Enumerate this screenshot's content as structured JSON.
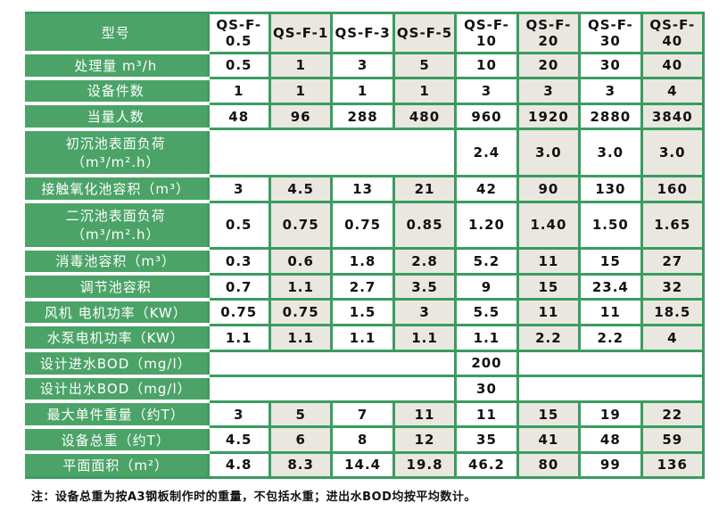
{
  "colors": {
    "label_green": "#4ba368",
    "border_green": "#3a9c60",
    "alt_beige": "#e9e7e0",
    "cell_white": "#ffffff",
    "text_black": "#111111",
    "label_text_white": "#ffffff"
  },
  "table": {
    "header": {
      "label": "型号",
      "models": [
        "QS-F-0.5",
        "QS-F-1",
        "QS-F-3",
        "QS-F-5",
        "QS-F-10",
        "QS-F-20",
        "QS-F-30",
        "QS-F-40"
      ]
    },
    "rows": [
      {
        "label": "处理量 m³/h",
        "cells": [
          "0.5",
          "1",
          "3",
          "5",
          "10",
          "20",
          "30",
          "40"
        ]
      },
      {
        "label": "设备件数",
        "cells": [
          "1",
          "1",
          "1",
          "1",
          "3",
          "3",
          "3",
          "4"
        ]
      },
      {
        "label": "当量人数",
        "cells": [
          "48",
          "96",
          "288",
          "480",
          "960",
          "1920",
          "2880",
          "3840"
        ]
      },
      {
        "label": "初沉池表面负荷（m³/m².h）",
        "cells": [
          {
            "text": "",
            "span": 4,
            "white": true
          },
          "2.4",
          "3.0",
          "3.0",
          "3.0"
        ]
      },
      {
        "label": "接触氧化池容积（m³）",
        "cells": [
          "3",
          "4.5",
          "13",
          "21",
          "42",
          "90",
          "130",
          "160"
        ]
      },
      {
        "label": "二沉池表面负荷（m³/m².h）",
        "cells": [
          "0.5",
          "0.75",
          "0.75",
          "0.85",
          "1.20",
          "1.40",
          "1.50",
          "1.65"
        ]
      },
      {
        "label": "消毒池容积（m³）",
        "cells": [
          "0.3",
          "0.6",
          "1.8",
          "2.8",
          "5.2",
          "11",
          "15",
          "27"
        ]
      },
      {
        "label": "调节池容积",
        "cells": [
          "0.7",
          "1.1",
          "2.7",
          "3.5",
          "9",
          "15",
          "23.4",
          "32"
        ]
      },
      {
        "label": "风机 电机功率（KW）",
        "cells": [
          "0.75",
          "0.75",
          "1.5",
          "3",
          "5.5",
          "11",
          "11",
          "18.5"
        ]
      },
      {
        "label": "水泵电机功率（KW）",
        "cells": [
          "1.1",
          "1.1",
          "1.1",
          "1.1",
          "1.1",
          "2.2",
          "2.2",
          "4"
        ]
      },
      {
        "label": "设计进水BOD（mg/l）",
        "cells": [
          {
            "text": "",
            "span": 4,
            "white": true
          },
          "200",
          {
            "text": "",
            "span": 3,
            "white": true
          }
        ]
      },
      {
        "label": "设计出水BOD（mg/l）",
        "cells": [
          {
            "text": "",
            "span": 4,
            "white": true
          },
          "30",
          {
            "text": "",
            "span": 3,
            "white": true
          }
        ]
      },
      {
        "label": "最大单件重量（约T）",
        "cells": [
          "3",
          "5",
          "7",
          "11",
          "11",
          "15",
          "19",
          "22"
        ]
      },
      {
        "label": "设备总重（约T）",
        "cells": [
          "4.5",
          "6",
          "8",
          "12",
          "35",
          "41",
          "48",
          "59"
        ]
      },
      {
        "label": "平面面积（m²）",
        "cells": [
          "4.8",
          "8.3",
          "14.4",
          "19.8",
          "46.2",
          "80",
          "99",
          "136"
        ]
      }
    ],
    "note": "注：设备总重为按A3钢板制作时的重量，不包括水重；进出水BOD均按平均数计。"
  }
}
